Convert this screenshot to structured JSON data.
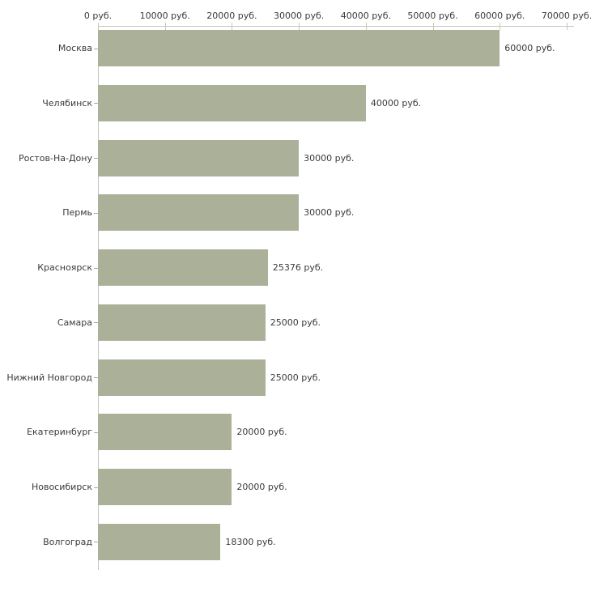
{
  "chart_data": {
    "type": "bar",
    "orientation": "horizontal",
    "title": "",
    "xlabel": "",
    "ylabel": "",
    "categories": [
      "Москва",
      "Челябинск",
      "Ростов-На-Дону",
      "Пермь",
      "Красноярск",
      "Самара",
      "Нижний Новгород",
      "Екатеринбург",
      "Новосибирск",
      "Волгоград"
    ],
    "values": [
      60000,
      40000,
      30000,
      30000,
      25376,
      25000,
      25000,
      20000,
      20000,
      18300
    ],
    "value_labels": [
      "60000 руб.",
      "40000 руб.",
      "30000 руб.",
      "30000 руб.",
      "25376 руб.",
      "25000 руб.",
      "25000 руб.",
      "20000 руб.",
      "20000 руб.",
      "18300 руб."
    ],
    "x_ticks": [
      0,
      10000,
      20000,
      30000,
      40000,
      50000,
      60000,
      70000
    ],
    "x_tick_labels": [
      "0 руб.",
      "10000 руб.",
      "20000 руб.",
      "30000 руб.",
      "40000 руб.",
      "50000 руб.",
      "60000 руб.",
      "70000 руб."
    ],
    "xlim": [
      0,
      70000
    ],
    "grid": false,
    "legend": false,
    "colors": {
      "bar": "#abb199",
      "axis": "#c6c6c6",
      "axis_tick": "#cdc9a5",
      "category_tick": "#a6a6a6",
      "text": "#3a3a3a",
      "background": "#ffffff"
    }
  }
}
